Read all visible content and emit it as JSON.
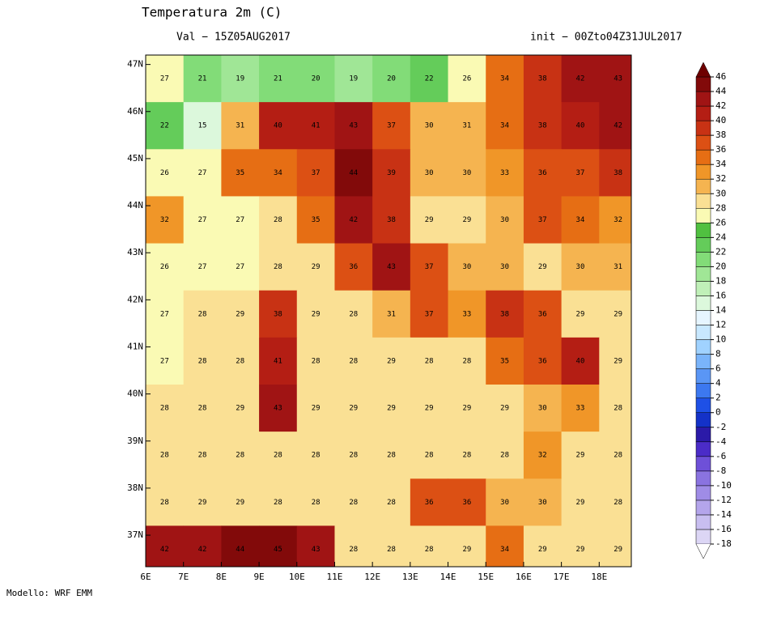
{
  "header": {
    "title": "Temperatura 2m (C)",
    "valid": "Val − 15Z05AUG2017",
    "init": "init − 00Zto04Z31JUL2017"
  },
  "footer": "Modello: WRF EMM",
  "map": {
    "type": "gridded-field",
    "xlim": [
      6,
      18.85
    ],
    "ylim": [
      36.33,
      47.2
    ],
    "xticks": [
      {
        "value": 6,
        "label": "6E"
      },
      {
        "value": 7,
        "label": "7E"
      },
      {
        "value": 8,
        "label": "8E"
      },
      {
        "value": 9,
        "label": "9E"
      },
      {
        "value": 10,
        "label": "10E"
      },
      {
        "value": 11,
        "label": "11E"
      },
      {
        "value": 12,
        "label": "12E"
      },
      {
        "value": 13,
        "label": "13E"
      },
      {
        "value": 14,
        "label": "14E"
      },
      {
        "value": 15,
        "label": "15E"
      },
      {
        "value": 16,
        "label": "16E"
      },
      {
        "value": 17,
        "label": "17E"
      },
      {
        "value": 18,
        "label": "18E"
      }
    ],
    "yticks": [
      {
        "value": 37,
        "label": "37N"
      },
      {
        "value": 38,
        "label": "38N"
      },
      {
        "value": 39,
        "label": "39N"
      },
      {
        "value": 40,
        "label": "40N"
      },
      {
        "value": 41,
        "label": "41N"
      },
      {
        "value": 42,
        "label": "42N"
      },
      {
        "value": 43,
        "label": "43N"
      },
      {
        "value": 44,
        "label": "44N"
      },
      {
        "value": 45,
        "label": "45N"
      },
      {
        "value": 46,
        "label": "46N"
      },
      {
        "value": 47,
        "label": "47N"
      }
    ],
    "field": [
      [
        27,
        21,
        19,
        21,
        20,
        19,
        20,
        22,
        26,
        34,
        38,
        42,
        43
      ],
      [
        22,
        15,
        31,
        40,
        41,
        43,
        37,
        30,
        31,
        34,
        38,
        40,
        42
      ],
      [
        26,
        27,
        35,
        34,
        37,
        44,
        39,
        30,
        30,
        33,
        36,
        37,
        38
      ],
      [
        32,
        27,
        27,
        28,
        35,
        42,
        38,
        29,
        29,
        30,
        37,
        34,
        32
      ],
      [
        26,
        27,
        27,
        28,
        29,
        36,
        43,
        37,
        30,
        30,
        29,
        30,
        31
      ],
      [
        27,
        28,
        29,
        38,
        29,
        28,
        31,
        37,
        33,
        38,
        36,
        29,
        29
      ],
      [
        27,
        28,
        28,
        41,
        28,
        28,
        29,
        28,
        28,
        35,
        36,
        40,
        29
      ],
      [
        28,
        28,
        29,
        43,
        29,
        29,
        29,
        29,
        29,
        29,
        30,
        33,
        28
      ],
      [
        28,
        28,
        28,
        28,
        28,
        28,
        28,
        28,
        28,
        28,
        32,
        29,
        28
      ],
      [
        28,
        29,
        29,
        28,
        28,
        28,
        28,
        36,
        36,
        30,
        30,
        29,
        28
      ],
      [
        42,
        42,
        44,
        45,
        43,
        28,
        28,
        28,
        29,
        34,
        29,
        29,
        29
      ]
    ]
  },
  "legend": {
    "levels": [
      -18,
      -16,
      -14,
      -12,
      -10,
      -8,
      -6,
      -4,
      -2,
      0,
      2,
      4,
      6,
      8,
      10,
      12,
      14,
      16,
      18,
      20,
      22,
      24,
      26,
      28,
      30,
      32,
      34,
      36,
      38,
      40,
      42,
      44,
      46
    ],
    "colors": [
      "#ffffff",
      "#dcd6f5",
      "#c8bef0",
      "#b4a5eb",
      "#9f8ce6",
      "#8a73e0",
      "#6e50d8",
      "#4b2cc8",
      "#2b1aa8",
      "#1432c8",
      "#1e50e6",
      "#3c78f0",
      "#5a96f5",
      "#7ab4fa",
      "#a0d2ff",
      "#c8e8ff",
      "#e6f5ff",
      "#dcf8dc",
      "#c0f0b8",
      "#a0e696",
      "#82dc78",
      "#64cc5a",
      "#50c040",
      "#fafab4",
      "#fae094",
      "#f5b450",
      "#f09628",
      "#e66e14",
      "#dc5014",
      "#c83214",
      "#b41e14",
      "#a01414",
      "#820a0a",
      "#6e0000"
    ]
  }
}
